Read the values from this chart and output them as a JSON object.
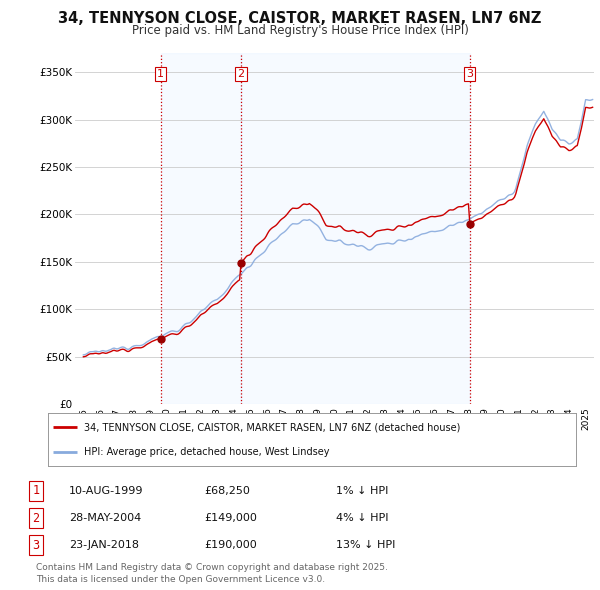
{
  "title": "34, TENNYSON CLOSE, CAISTOR, MARKET RASEN, LN7 6NZ",
  "subtitle": "Price paid vs. HM Land Registry's House Price Index (HPI)",
  "title_fontsize": 10.5,
  "subtitle_fontsize": 8.5,
  "background_color": "#ffffff",
  "plot_bg_color": "#ffffff",
  "shade_color": "#ddeeff",
  "ylim": [
    0,
    370000
  ],
  "yticks": [
    0,
    50000,
    100000,
    150000,
    200000,
    250000,
    300000,
    350000
  ],
  "ytick_labels": [
    "£0",
    "£50K",
    "£100K",
    "£150K",
    "£200K",
    "£250K",
    "£300K",
    "£350K"
  ],
  "xlim_start": 1994.5,
  "xlim_end": 2025.5,
  "xtick_years": [
    1995,
    1996,
    1997,
    1998,
    1999,
    2000,
    2001,
    2002,
    2003,
    2004,
    2005,
    2006,
    2007,
    2008,
    2009,
    2010,
    2011,
    2012,
    2013,
    2014,
    2015,
    2016,
    2017,
    2018,
    2019,
    2020,
    2021,
    2022,
    2023,
    2024,
    2025
  ],
  "hpi_color": "#88aadd",
  "price_color": "#cc0000",
  "sale_marker_color": "#990000",
  "vline_color": "#cc0000",
  "vline_style": ":",
  "grid_color": "#cccccc",
  "sales": [
    {
      "num": 1,
      "date_x": 1999.61,
      "price": 68250,
      "label": "1"
    },
    {
      "num": 2,
      "date_x": 2004.41,
      "price": 149000,
      "label": "2"
    },
    {
      "num": 3,
      "date_x": 2018.07,
      "price": 190000,
      "label": "3"
    }
  ],
  "legend_items": [
    {
      "label": "34, TENNYSON CLOSE, CAISTOR, MARKET RASEN, LN7 6NZ (detached house)",
      "color": "#cc0000"
    },
    {
      "label": "HPI: Average price, detached house, West Lindsey",
      "color": "#88aadd"
    }
  ],
  "table_rows": [
    {
      "num": "1",
      "date": "10-AUG-1999",
      "price": "£68,250",
      "hpi": "1% ↓ HPI"
    },
    {
      "num": "2",
      "date": "28-MAY-2004",
      "price": "£149,000",
      "hpi": "4% ↓ HPI"
    },
    {
      "num": "3",
      "date": "23-JAN-2018",
      "price": "£190,000",
      "hpi": "13% ↓ HPI"
    }
  ],
  "footnote": "Contains HM Land Registry data © Crown copyright and database right 2025.\nThis data is licensed under the Open Government Licence v3.0.",
  "footnote_fontsize": 6.5
}
